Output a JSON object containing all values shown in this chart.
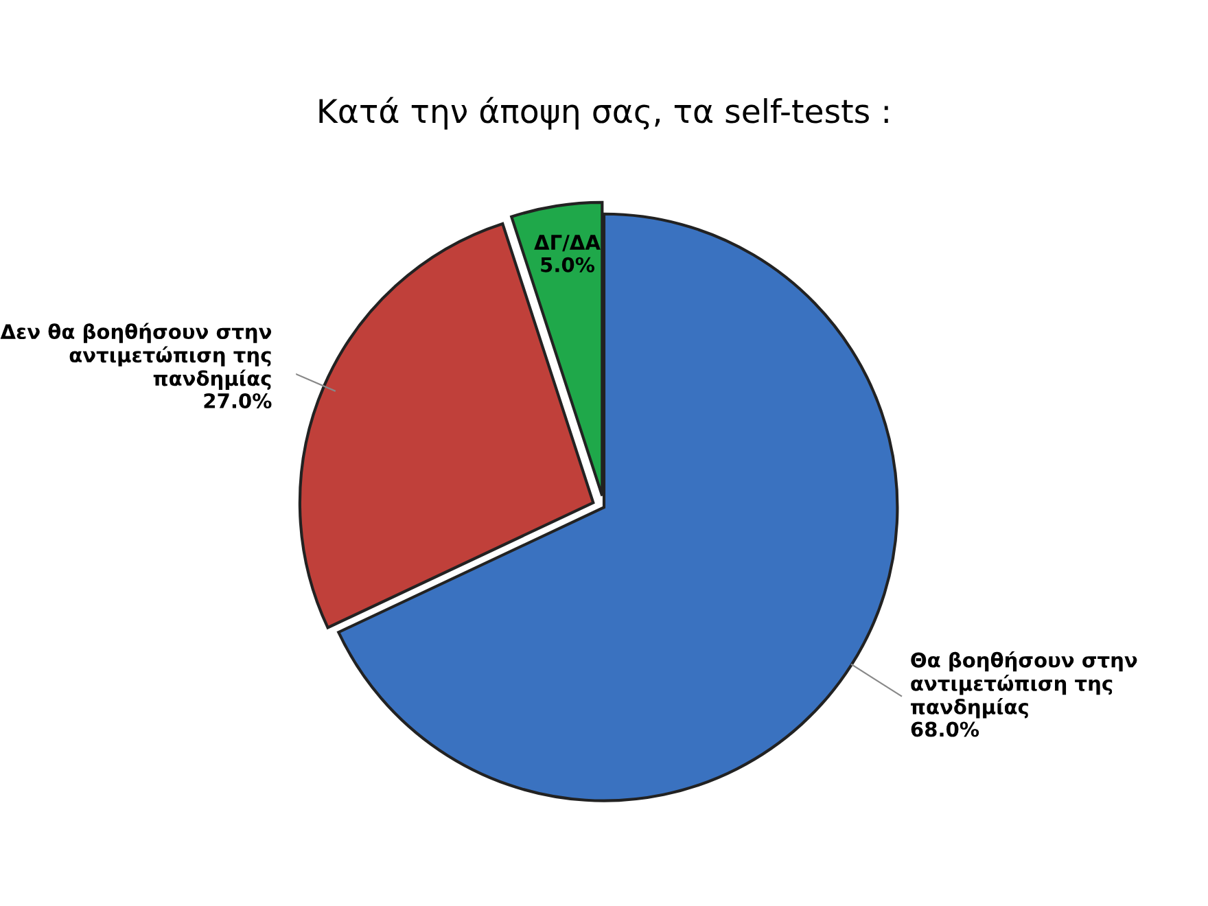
{
  "chart_data": {
    "type": "pie",
    "title": "Κατά την άποψη σας, τα self-tests :",
    "categories": [
      "Θα βοηθήσουν στην\nαντιμετώπιση της\nπανδημίας",
      "Δεν θα βοηθήσουν στην\nαντιμετώπιση της\nπανδημίας",
      "ΔΓ/ΔΑ"
    ],
    "values": [
      68.0,
      27.0,
      5.0
    ],
    "value_labels": [
      "68.0%",
      "27.0%",
      "5.0%"
    ],
    "colors": [
      "#3a72c0",
      "#c0403a",
      "#1fa84a"
    ],
    "legend": false
  }
}
